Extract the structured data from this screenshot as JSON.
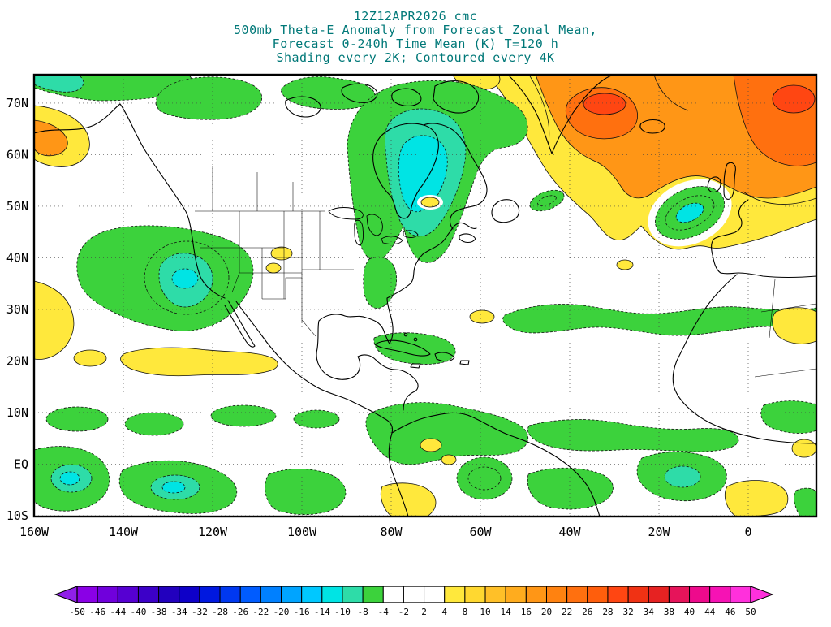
{
  "title": {
    "lines": [
      "12Z12APR2026 cmc",
      "500mb Theta-E Anomaly from Forecast Zonal Mean,",
      "Forecast 0-240h Time Mean (K) T=120 h",
      "Shading every 2K; Contoured every 4K"
    ],
    "color": "#007878"
  },
  "map": {
    "lat_ticks": [
      {
        "label": "70N",
        "deg": 70
      },
      {
        "label": "60N",
        "deg": 60
      },
      {
        "label": "50N",
        "deg": 50
      },
      {
        "label": "40N",
        "deg": 40
      },
      {
        "label": "30N",
        "deg": 30
      },
      {
        "label": "20N",
        "deg": 20
      },
      {
        "label": "10N",
        "deg": 10
      },
      {
        "label": "EQ",
        "deg": 0
      },
      {
        "label": "10S",
        "deg": -10
      }
    ],
    "lon_ticks": [
      {
        "label": "160W",
        "deg": -160
      },
      {
        "label": "140W",
        "deg": -140
      },
      {
        "label": "120W",
        "deg": -120
      },
      {
        "label": "100W",
        "deg": -100
      },
      {
        "label": "80W",
        "deg": -80
      },
      {
        "label": "60W",
        "deg": -60
      },
      {
        "label": "40W",
        "deg": -40
      },
      {
        "label": "20W",
        "deg": -20
      },
      {
        "label": "0",
        "deg": 0
      }
    ],
    "frame_color": "#000000",
    "grid_color": "#444444"
  },
  "colorbar": {
    "labels": [
      "-50",
      "-46",
      "-44",
      "-40",
      "-38",
      "-34",
      "-32",
      "-28",
      "-26",
      "-22",
      "-20",
      "-16",
      "-14",
      "-10",
      "-8",
      "-4",
      "-2",
      "2",
      "4",
      "8",
      "10",
      "14",
      "16",
      "20",
      "22",
      "26",
      "28",
      "32",
      "34",
      "38",
      "40",
      "44",
      "46",
      "50"
    ],
    "colors": [
      "#8A00E6",
      "#7000DC",
      "#5600D2",
      "#3C00C8",
      "#2200BE",
      "#0E00C8",
      "#0018E0",
      "#0038F0",
      "#005CFF",
      "#0080FF",
      "#00A4FF",
      "#00C8FF",
      "#00E4E4",
      "#2EDCA8",
      "#3CD23C",
      "#FFFFFF",
      "#FFFFFF",
      "#FFFFFF",
      "#FFE83C",
      "#FFD830",
      "#FFC028",
      "#FFAC1E",
      "#FF9616",
      "#FF8210",
      "#FF700F",
      "#FF5E0C",
      "#FF4612",
      "#F03214",
      "#E62222",
      "#E6145A",
      "#EE0A8C",
      "#F612B4",
      "#FF30DC"
    ],
    "arrow_left_color": "#9020E8",
    "arrow_right_color": "#FF30DC"
  },
  "chart_data": {
    "type": "heatmap",
    "subtype": "filled-contour weather map",
    "model_run": "12Z12APR2026 cmc",
    "title": "500mb Theta-E Anomaly from Forecast Zonal Mean, Forecast 0-240h Time Mean (K) T=120 h",
    "shading_note": "Shading every 2K; Contoured every 4K",
    "units": "K",
    "shading_interval_K": 2,
    "contour_interval_K": 4,
    "lat_range": [
      "10S",
      "75N"
    ],
    "lon_range": [
      "160W",
      "15E"
    ],
    "grid": "dotted, every 10 deg lat / 20 deg lon",
    "colorbar_boundaries": [
      -50,
      -46,
      -44,
      -40,
      -38,
      -34,
      -32,
      -28,
      -26,
      -22,
      -20,
      -16,
      -14,
      -10,
      -8,
      -4,
      -2,
      2,
      4,
      8,
      10,
      14,
      16,
      20,
      22,
      26,
      28,
      32,
      34,
      38,
      40,
      44,
      46,
      50
    ],
    "anomaly_features": [
      {
        "region": "Greenland and subpolar North Atlantic",
        "sign": "positive",
        "approx_peak_K": "+20 to +28",
        "shading": "orange with red cores"
      },
      {
        "region": "Far northeast Atlantic, top-right corner",
        "sign": "positive",
        "approx_peak_K": "+20 to +28",
        "shading": "orange-red"
      },
      {
        "region": "Gulf of Alaska / Bering, top-left corner",
        "sign": "positive",
        "approx_peak_K": "+8 to +14",
        "shading": "yellow with orange core"
      },
      {
        "region": "Hudson Bay / Quebec",
        "sign": "negative",
        "approx_peak_K": "-10 to -16",
        "shading": "green with teal-cyan core, dashed contours"
      },
      {
        "region": "Eastern North Pacific off California (~37N 127W)",
        "sign": "negative",
        "approx_peak_K": "-8 to -12",
        "shading": "green with cyan core"
      },
      {
        "region": "Eastern North Atlantic west of Europe (~50N 15W)",
        "sign": "negative",
        "approx_peak_K": "-10 to -14",
        "shading": "green oval with cyan core"
      },
      {
        "region": "Northern Canada along 65-70N",
        "sign": "negative",
        "approx_peak_K": "-4 to -8",
        "shading": "green patches"
      },
      {
        "region": "Subtropical Atlantic band 24-30N",
        "sign": "negative",
        "approx_peak_K": "-4 to -8",
        "shading": "long green band"
      },
      {
        "region": "Subtropical NE Pacific band near 20N and left edge 25-35N",
        "sign": "positive",
        "approx_peak_K": "+4 to +8",
        "shading": "yellow bands"
      },
      {
        "region": "Tropical Pacific and Atlantic 10S-12N",
        "sign": "negative",
        "approx_peak_K": "-4 to -10",
        "shading": "green patches with cyan cores"
      },
      {
        "region": "Colombia, Peru coast, NW and central Africa spots",
        "sign": "positive",
        "approx_peak_K": "+4 to +8",
        "shading": "small yellow blobs"
      }
    ]
  }
}
